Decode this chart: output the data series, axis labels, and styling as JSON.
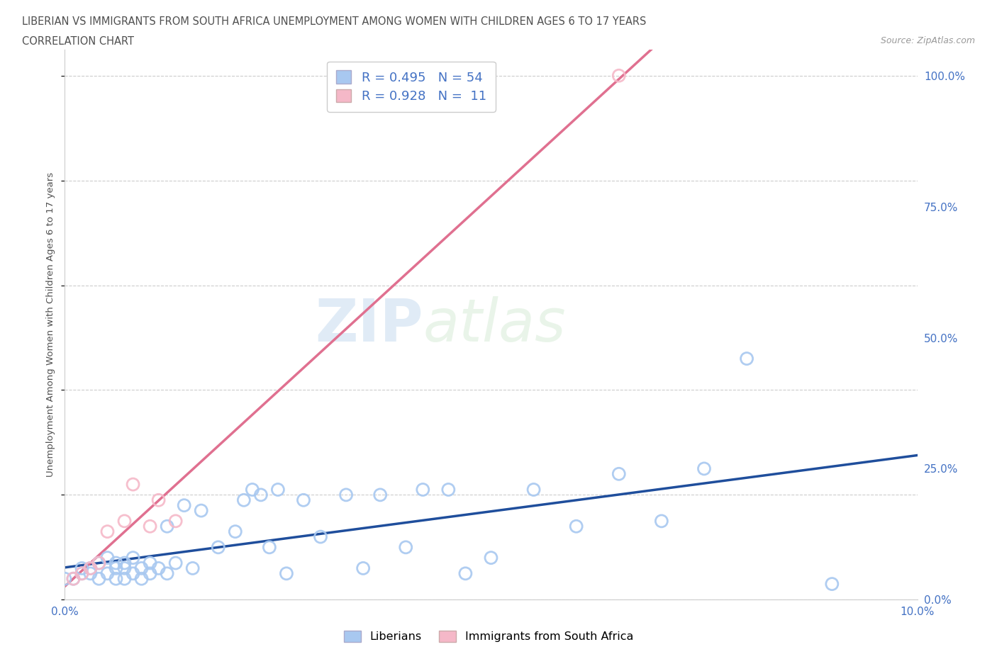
{
  "title_line1": "LIBERIAN VS IMMIGRANTS FROM SOUTH AFRICA UNEMPLOYMENT AMONG WOMEN WITH CHILDREN AGES 6 TO 17 YEARS",
  "title_line2": "CORRELATION CHART",
  "source_text": "Source: ZipAtlas.com",
  "ylabel": "Unemployment Among Women with Children Ages 6 to 17 years",
  "watermark_zip": "ZIP",
  "watermark_atlas": "atlas",
  "legend_label1": "Liberians",
  "legend_label2": "Immigrants from South Africa",
  "R1": 0.495,
  "N1": 54,
  "R2": 0.928,
  "N2": 11,
  "color1": "#a8c8f0",
  "color2": "#f5b8c8",
  "line_color1": "#1f4e9c",
  "line_color2": "#e07090",
  "xlim": [
    0.0,
    0.1
  ],
  "ylim": [
    0.0,
    1.05
  ],
  "ytick_positions": [
    0.0,
    0.25,
    0.5,
    0.75,
    1.0
  ],
  "ytick_labels": [
    "0.0%",
    "25.0%",
    "50.0%",
    "75.0%",
    "100.0%"
  ],
  "liberian_x": [
    0.0,
    0.001,
    0.002,
    0.002,
    0.003,
    0.003,
    0.004,
    0.004,
    0.005,
    0.005,
    0.006,
    0.006,
    0.006,
    0.007,
    0.007,
    0.007,
    0.008,
    0.008,
    0.009,
    0.009,
    0.01,
    0.01,
    0.011,
    0.012,
    0.012,
    0.013,
    0.014,
    0.015,
    0.016,
    0.018,
    0.02,
    0.021,
    0.022,
    0.023,
    0.024,
    0.025,
    0.026,
    0.028,
    0.03,
    0.033,
    0.035,
    0.037,
    0.04,
    0.042,
    0.045,
    0.047,
    0.05,
    0.055,
    0.06,
    0.065,
    0.07,
    0.075,
    0.08,
    0.09
  ],
  "liberian_y": [
    0.04,
    0.04,
    0.05,
    0.06,
    0.05,
    0.06,
    0.04,
    0.07,
    0.05,
    0.08,
    0.04,
    0.06,
    0.07,
    0.04,
    0.06,
    0.07,
    0.05,
    0.08,
    0.04,
    0.06,
    0.05,
    0.07,
    0.06,
    0.05,
    0.14,
    0.07,
    0.18,
    0.06,
    0.17,
    0.1,
    0.13,
    0.19,
    0.21,
    0.2,
    0.1,
    0.21,
    0.05,
    0.19,
    0.12,
    0.2,
    0.06,
    0.2,
    0.1,
    0.21,
    0.21,
    0.05,
    0.08,
    0.21,
    0.14,
    0.24,
    0.15,
    0.25,
    0.46,
    0.03
  ],
  "sa_x": [
    0.001,
    0.002,
    0.003,
    0.004,
    0.005,
    0.007,
    0.008,
    0.01,
    0.011,
    0.013,
    0.065
  ],
  "sa_y": [
    0.04,
    0.05,
    0.06,
    0.07,
    0.13,
    0.15,
    0.22,
    0.14,
    0.19,
    0.15,
    1.0
  ],
  "background_color": "#ffffff",
  "grid_color": "#cccccc",
  "tick_color": "#4472c4",
  "title_color": "#505050",
  "axis_label_color": "#505050",
  "source_color": "#999999"
}
